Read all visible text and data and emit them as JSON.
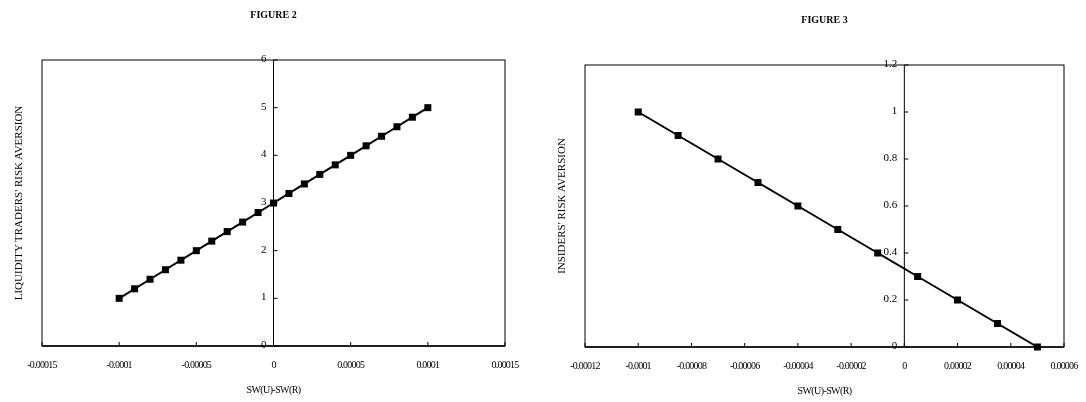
{
  "chart_data": [
    {
      "type": "line",
      "title": "FIGURE 2",
      "xlabel": "SW(U)-SW(R)",
      "ylabel": "LIQUIDITY TRADERS' RISK AVERSION",
      "xlim": [
        -0.00015,
        0.00015
      ],
      "xticks": [
        -0.00015,
        -0.0001,
        {
          "value": -5e-05,
          "label": "-0.00005"
        },
        0,
        {
          "value": 5e-05,
          "label": "0.00005"
        },
        0.0001,
        0.00015
      ],
      "ylim": [
        0,
        6
      ],
      "yticks": [
        0,
        1,
        2,
        3,
        4,
        5,
        6
      ],
      "marker": "square",
      "line_style": "solid",
      "series": [
        {
          "color": "#000000",
          "x": [
            -0.0001,
            -9e-05,
            -8e-05,
            -7e-05,
            -6e-05,
            -5e-05,
            -4e-05,
            -3e-05,
            -2e-05,
            -1e-05,
            0,
            1e-05,
            2e-05,
            3e-05,
            4e-05,
            5e-05,
            6e-05,
            7e-05,
            8e-05,
            9e-05,
            0.0001
          ],
          "values": [
            1,
            1.2,
            1.4,
            1.6,
            1.8,
            2,
            2.2,
            2.4,
            2.6,
            2.8,
            3,
            3.2,
            3.4,
            3.6,
            3.8,
            4,
            4.2,
            4.4,
            4.6,
            4.8,
            5
          ]
        }
      ]
    },
    {
      "type": "line",
      "title": "FIGURE 3",
      "xlabel": "SW(U)-SW(R)",
      "ylabel": "INSIDERS' RISK AVERSION",
      "xlim": [
        -0.00012,
        6e-05
      ],
      "xticks": [
        -0.00012,
        -0.0001,
        {
          "value": -8e-05,
          "label": "-0.00008"
        },
        {
          "value": -6e-05,
          "label": "-0.00006"
        },
        {
          "value": -4e-05,
          "label": "-0.00004"
        },
        {
          "value": -2e-05,
          "label": "-0.00002"
        },
        0,
        {
          "value": 2e-05,
          "label": "0.00002"
        },
        {
          "value": 4e-05,
          "label": "0.00004"
        },
        {
          "value": 6e-05,
          "label": "0.00006"
        }
      ],
      "ylim": [
        0,
        1.2
      ],
      "yticks": [
        0,
        0.2,
        0.4,
        0.6,
        0.8,
        1,
        1.2
      ],
      "marker": "square",
      "line_style": "solid",
      "series": [
        {
          "color": "#000000",
          "x": [
            -0.0001,
            -8.5e-05,
            -7e-05,
            -5.5e-05,
            -4e-05,
            -2.5e-05,
            -1e-05,
            5e-06,
            2e-05,
            3.5e-05,
            5e-05
          ],
          "values": [
            1,
            0.9,
            0.8,
            0.7,
            0.6,
            0.5,
            0.4,
            0.3,
            0.2,
            0.1,
            0
          ]
        }
      ]
    }
  ]
}
